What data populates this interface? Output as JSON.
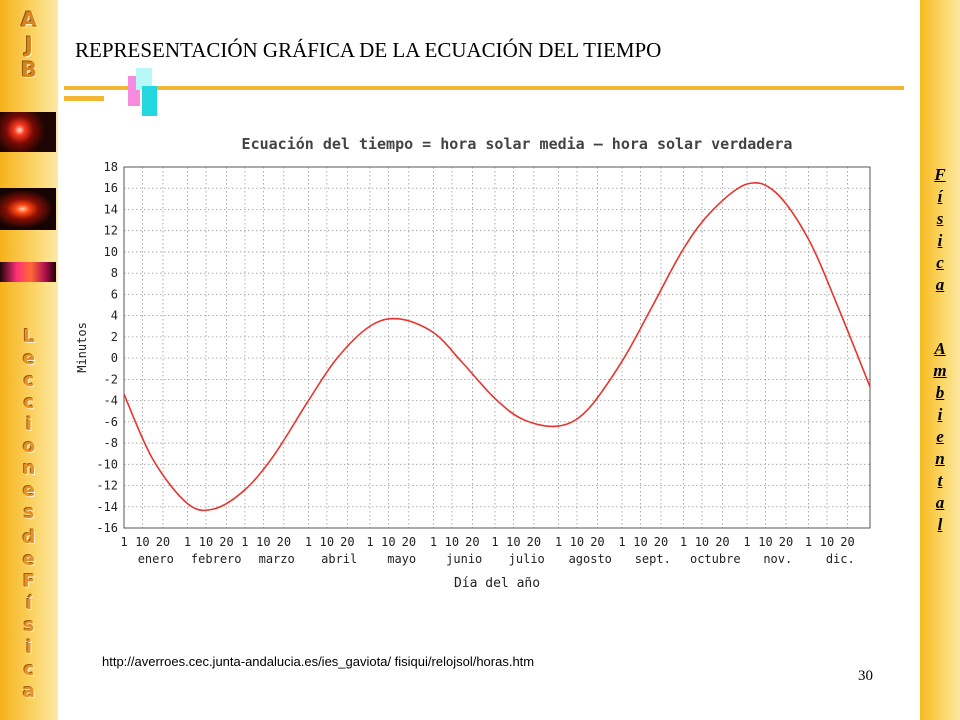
{
  "slide": {
    "logo_letters": [
      "A",
      "J",
      "B"
    ],
    "left_word_1": [
      "L",
      "e",
      "c",
      "c",
      "i",
      "o",
      "n",
      "e",
      "s"
    ],
    "left_word_2": [
      "d",
      "e"
    ],
    "left_word_3": [
      "F",
      "í",
      "s",
      "i",
      "c",
      "a"
    ],
    "right_word_1": [
      "F",
      "í",
      "s",
      "i",
      "c",
      "a"
    ],
    "right_word_2": [
      "A",
      "m",
      "b",
      "i",
      "e",
      "n",
      "t",
      "a",
      "l"
    ],
    "title": "REPRESENTACIÓN GRÁFICA DE LA ECUACIÓN DEL TIEMPO",
    "source_url": "http://averroes.cec.junta-andalucia.es/ies_gaviota/ fisiqui/relojsol/horas.htm",
    "page_number": "30",
    "accent_color": "#f3b534",
    "sidebar_color": "#f6b21a"
  },
  "chart_data": {
    "type": "line",
    "title": "Ecuación del tiempo = hora solar media – hora solar verdadera",
    "xlabel": "Día del año",
    "ylabel": "Minutos",
    "ylim": [
      -16,
      18
    ],
    "yticks": [
      18,
      16,
      14,
      12,
      10,
      8,
      6,
      4,
      2,
      0,
      -2,
      -4,
      -6,
      -8,
      -10,
      -12,
      -14,
      -16
    ],
    "months": [
      "enero",
      "febrero",
      "marzo",
      "abril",
      "mayo",
      "junio",
      "julio",
      "agosto",
      "sept.",
      "octubre",
      "nov.",
      "dic."
    ],
    "day_ticks": [
      "1",
      "10",
      "20"
    ],
    "grid": true,
    "line_color": "#e8332e",
    "series": [
      {
        "x": [
          1,
          15,
          32,
          45,
          60,
          74,
          91,
          105,
          121,
          135,
          152,
          166,
          182,
          196,
          213,
          227,
          244,
          258,
          274,
          288,
          305,
          319,
          335,
          349,
          365
        ],
        "values": [
          -3.4,
          -9.5,
          -13.7,
          -14.2,
          -12.4,
          -9.2,
          -4.0,
          0.0,
          3.0,
          3.7,
          2.4,
          -0.4,
          -3.8,
          -5.8,
          -6.4,
          -4.9,
          -0.3,
          4.6,
          10.3,
          13.9,
          16.4,
          15.6,
          11.2,
          5.0,
          -2.7
        ]
      }
    ]
  }
}
